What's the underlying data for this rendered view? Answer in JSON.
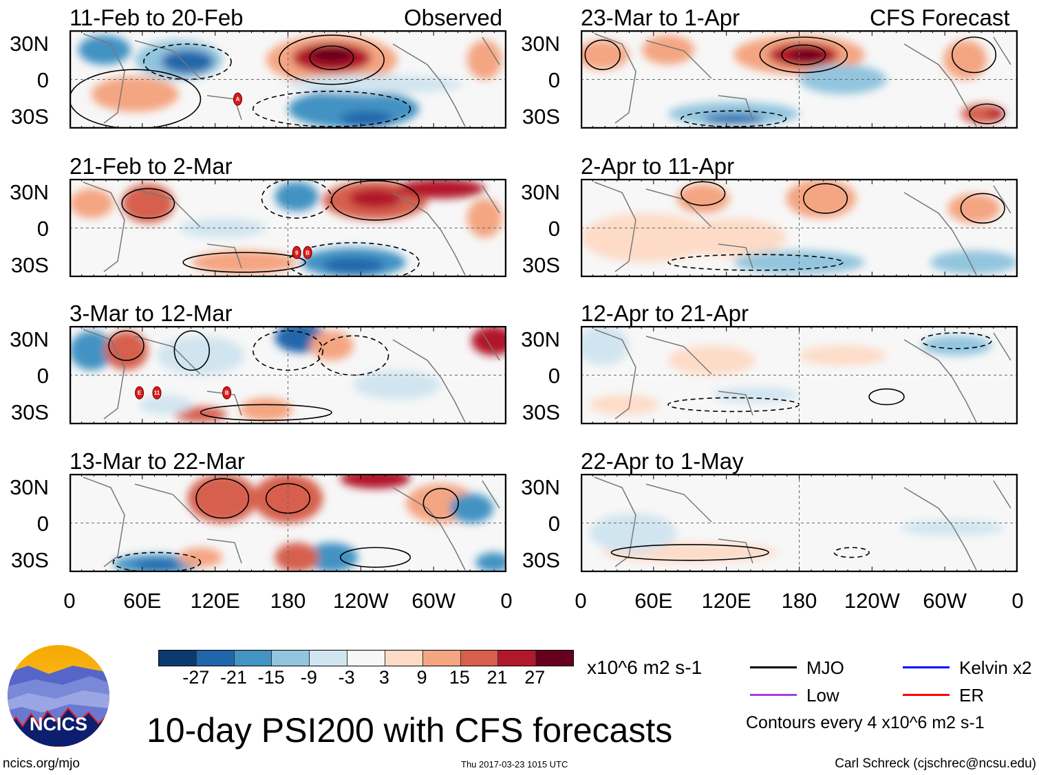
{
  "header": {
    "left_label": "Observed",
    "right_label": "CFS Forecast"
  },
  "panels": [
    {
      "title": "11-Feb to 20-Feb",
      "type": "observed",
      "storms": [
        "A"
      ]
    },
    {
      "title": "21-Feb to 2-Mar",
      "type": "observed",
      "storms": [
        "9",
        "B"
      ]
    },
    {
      "title": "3-Mar to 12-Mar",
      "type": "observed",
      "storms": [
        "E",
        "11",
        "B"
      ]
    },
    {
      "title": "13-Mar to 22-Mar",
      "type": "observed",
      "storms": []
    },
    {
      "title": "23-Mar to 1-Apr",
      "type": "forecast",
      "storms": []
    },
    {
      "title": "2-Apr to 11-Apr",
      "type": "forecast",
      "storms": []
    },
    {
      "title": "12-Apr to 21-Apr",
      "type": "forecast",
      "storms": []
    },
    {
      "title": "22-Apr to 1-May",
      "type": "forecast",
      "storms": []
    }
  ],
  "chart_data": {
    "type": "heatmap",
    "title": "10-day PSI200 with CFS forecasts",
    "units": "x10^6 m2 s-1",
    "y_ticks": [
      "30N",
      "0",
      "30S"
    ],
    "x_ticks": [
      "0",
      "60E",
      "120E",
      "180",
      "120W",
      "60W",
      "0"
    ],
    "colorbar": {
      "levels": [
        "-27",
        "-21",
        "-15",
        "-9",
        "-3",
        "3",
        "9",
        "15",
        "21",
        "27"
      ],
      "colors": [
        "#0b3b6e",
        "#2166ac",
        "#4393c3",
        "#92c5de",
        "#d1e5f0",
        "#f7f7f7",
        "#fddbc7",
        "#f4a582",
        "#d6604d",
        "#b2182b",
        "#67001f"
      ]
    },
    "contour_interval": "Contours every 4 x10^6 m2 s-1",
    "legend": [
      {
        "label": "MJO",
        "color": "#000000"
      },
      {
        "label": "Kelvin x2",
        "color": "#0000ff"
      },
      {
        "label": "Low",
        "color": "#a040e0"
      },
      {
        "label": "ER",
        "color": "#ff0000"
      }
    ]
  },
  "logo": {
    "text": "NCICS"
  },
  "footer": {
    "url": "ncics.org/mjo",
    "timestamp": "Thu 2017-03-23 1015 UTC",
    "author": "Carl Schreck (cjschrec@ncsu.edu)"
  }
}
